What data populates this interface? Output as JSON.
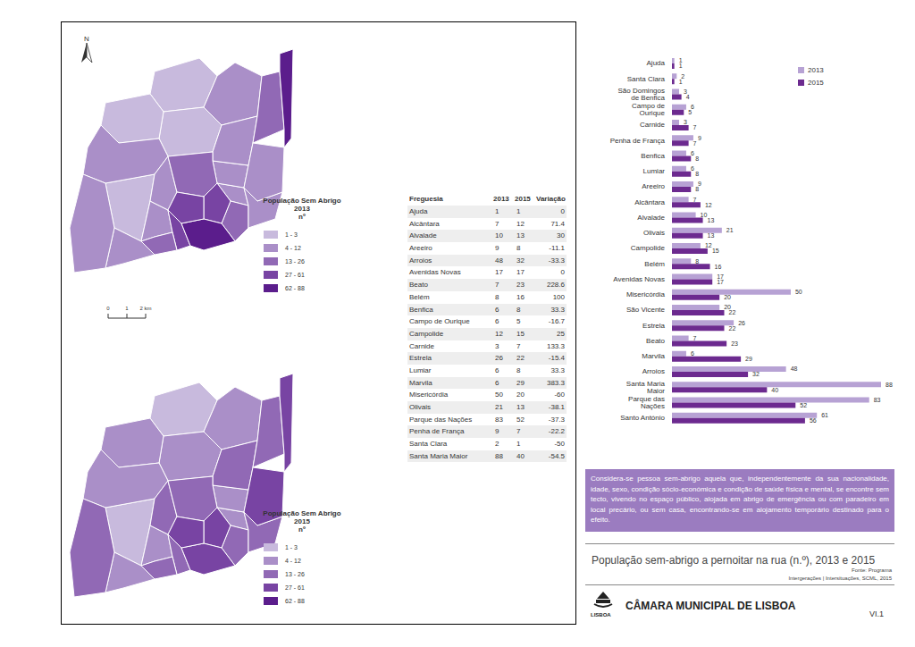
{
  "maps": [
    {
      "legend_title": "População Sem Abrigo 2013",
      "legend_unit": "nº"
    },
    {
      "legend_title": "População Sem Abrigo 2015",
      "legend_unit": "nº"
    }
  ],
  "map_classes": [
    {
      "label": "1 - 3",
      "min": 1,
      "max": 3,
      "color": "#c8badd"
    },
    {
      "label": "4 - 12",
      "min": 4,
      "max": 12,
      "color": "#aa8fc8"
    },
    {
      "label": "13 - 26",
      "min": 13,
      "max": 26,
      "color": "#9169b5"
    },
    {
      "label": "27 - 61",
      "min": 27,
      "max": 61,
      "color": "#7844a3"
    },
    {
      "label": "62 - 88",
      "min": 62,
      "max": 88,
      "color": "#5b1d8c"
    }
  ],
  "north": "N",
  "scale_bar": [
    "0",
    "1",
    "2 km"
  ],
  "table": {
    "columns": [
      "Freguesia",
      "2013",
      "2015",
      "Variação"
    ],
    "rows": [
      [
        "Ajuda",
        1,
        1,
        0
      ],
      [
        "Alcântara",
        7,
        12,
        71.4
      ],
      [
        "Alvalade",
        10,
        13,
        30
      ],
      [
        "Areeiro",
        9,
        8,
        -11.1
      ],
      [
        "Arroios",
        48,
        32,
        -33.3
      ],
      [
        "Avenidas Novas",
        17,
        17,
        0
      ],
      [
        "Beato",
        7,
        23,
        228.6
      ],
      [
        "Belém",
        8,
        16,
        100
      ],
      [
        "Benfica",
        6,
        8,
        33.3
      ],
      [
        "Campo de Ourique",
        6,
        5,
        -16.7
      ],
      [
        "Campolide",
        12,
        15,
        25
      ],
      [
        "Carnide",
        3,
        7,
        133.3
      ],
      [
        "Estrela",
        26,
        22,
        -15.4
      ],
      [
        "Lumiar",
        6,
        8,
        33.3
      ],
      [
        "Marvila",
        6,
        29,
        383.3
      ],
      [
        "Misericórdia",
        50,
        20,
        -60
      ],
      [
        "Olivais",
        21,
        13,
        -38.1
      ],
      [
        "Parque das Nações",
        83,
        52,
        -37.3
      ],
      [
        "Penha de França",
        9,
        7,
        -22.2
      ],
      [
        "Santa Clara",
        2,
        1,
        -50
      ],
      [
        "Santa Maria Maior",
        88,
        40,
        -54.5
      ]
    ]
  },
  "chart_data": {
    "type": "bar",
    "orientation": "horizontal",
    "categories": [
      "Ajuda",
      "Santa Clara",
      "São Domingos de Benfica",
      "Campo de Ourique",
      "Carnide",
      "Penha de França",
      "Benfica",
      "Lumiar",
      "Areeiro",
      "Alcântara",
      "Alvalade",
      "Olivais",
      "Campolide",
      "Belém",
      "Avenidas Novas",
      "Misericórdia",
      "São Vicente",
      "Estrela",
      "Beato",
      "Marvila",
      "Arroios",
      "Santa Maria Maior",
      "Parque das Nações",
      "Santo António"
    ],
    "series": [
      {
        "name": "2013",
        "color": "#b7a2d4",
        "values": [
          1,
          2,
          3,
          6,
          3,
          9,
          6,
          6,
          9,
          7,
          10,
          21,
          12,
          8,
          17,
          50,
          20,
          26,
          7,
          6,
          48,
          88,
          83,
          61
        ]
      },
      {
        "name": "2015",
        "color": "#6c2a8f",
        "values": [
          1,
          1,
          4,
          5,
          7,
          7,
          8,
          8,
          8,
          12,
          13,
          13,
          15,
          16,
          17,
          20,
          22,
          22,
          23,
          29,
          32,
          40,
          52,
          56
        ]
      }
    ],
    "xlim": [
      0,
      88
    ],
    "data_labels": true,
    "tick_labels": "y",
    "legend": "upper right"
  },
  "definition": "Considera-se pessoa sem-abrigo aquela que, independentemente da sua nacionalidade, idade, sexo, condição sócio-económica e condição de saúde física e mental, se encontre sem tecto, vivendo no espaço público, alojada em abrigo de emergência ou com paradeiro em local precário, ou sem casa, encontrando-se em alojamento temporário destinado para o efeito.",
  "title": "População sem-abrigo a pernoitar na rua (n.º), 2013 e 2015",
  "source": [
    "Fonte: Programa",
    "Intergerações | Intersituações, SCML, 2015"
  ],
  "organization": "CÂMARA MUNICIPAL DE LISBOA",
  "logo_text": "LISBOA",
  "page": "VI.1"
}
